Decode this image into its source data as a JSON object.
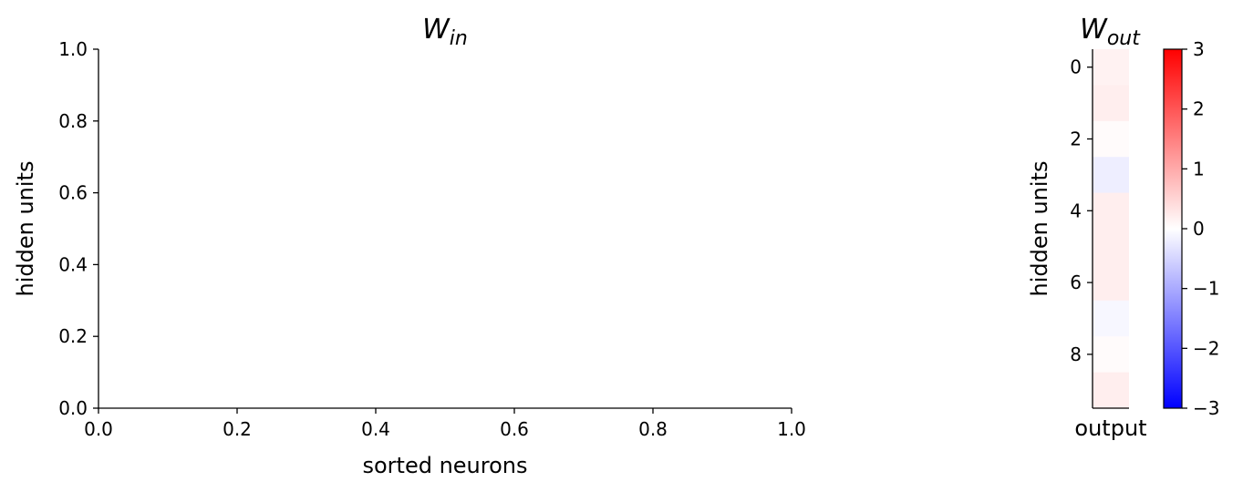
{
  "chart_data": [
    {
      "type": "line",
      "title_main": "W",
      "title_sub": "in",
      "xlabel": "sorted neurons",
      "ylabel": "hidden units",
      "xlim": [
        0,
        1
      ],
      "ylim": [
        0,
        1
      ],
      "x_ticks": [
        "0.0",
        "0.2",
        "0.4",
        "0.6",
        "0.8",
        "1.0"
      ],
      "y_ticks": [
        "0.0",
        "0.2",
        "0.4",
        "0.6",
        "0.8",
        "1.0"
      ],
      "series": [],
      "grid": false
    },
    {
      "type": "heatmap",
      "title_main": "W",
      "title_sub": "out",
      "xlabel": "output",
      "ylabel": "hidden units",
      "y_ticks": [
        "0",
        "2",
        "4",
        "6",
        "8"
      ],
      "values": [
        0.15,
        0.2,
        0.05,
        -0.2,
        0.2,
        0.2,
        0.2,
        -0.1,
        0.05,
        0.2
      ],
      "colormap": "bwr",
      "vmin": -3,
      "vmax": 3,
      "colorbar_ticks": [
        "3",
        "2",
        "1",
        "0",
        "−1",
        "−2",
        "−3"
      ],
      "colorbar_values": [
        3,
        2,
        1,
        0,
        -1,
        -2,
        -3
      ]
    }
  ]
}
